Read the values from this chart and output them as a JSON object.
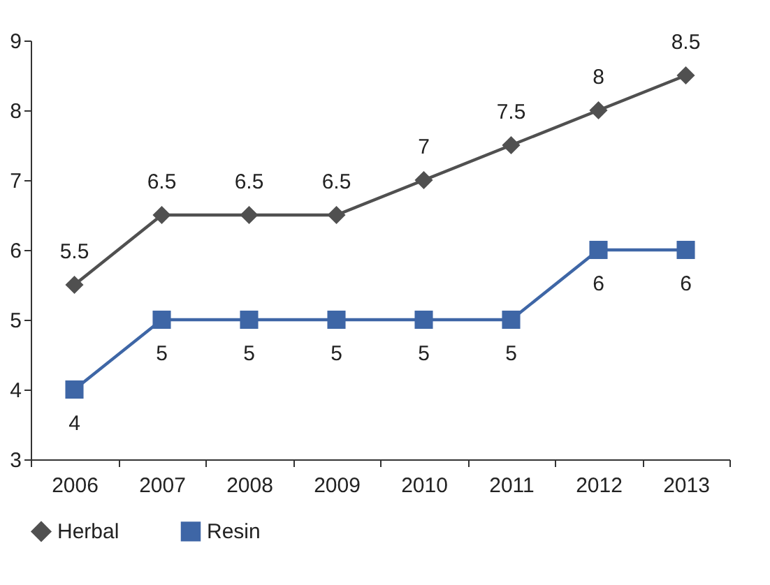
{
  "chart_data": {
    "type": "line",
    "categories": [
      "2006",
      "2007",
      "2008",
      "2009",
      "2010",
      "2011",
      "2012",
      "2013"
    ],
    "series": [
      {
        "name": "Herbal",
        "color": "#505050",
        "marker": "diamond",
        "values": [
          5.5,
          6.5,
          6.5,
          6.5,
          7,
          7.5,
          8,
          8.5
        ]
      },
      {
        "name": "Resin",
        "color": "#3e66a6",
        "marker": "square",
        "values": [
          4,
          5,
          5,
          5,
          5,
          5,
          6,
          6
        ]
      }
    ],
    "ylim": [
      3,
      9
    ],
    "yticks": [
      3,
      4,
      5,
      6,
      7,
      8,
      9
    ],
    "grid": false,
    "legend": "bottom",
    "data_labels": true,
    "line_style": "solid"
  }
}
